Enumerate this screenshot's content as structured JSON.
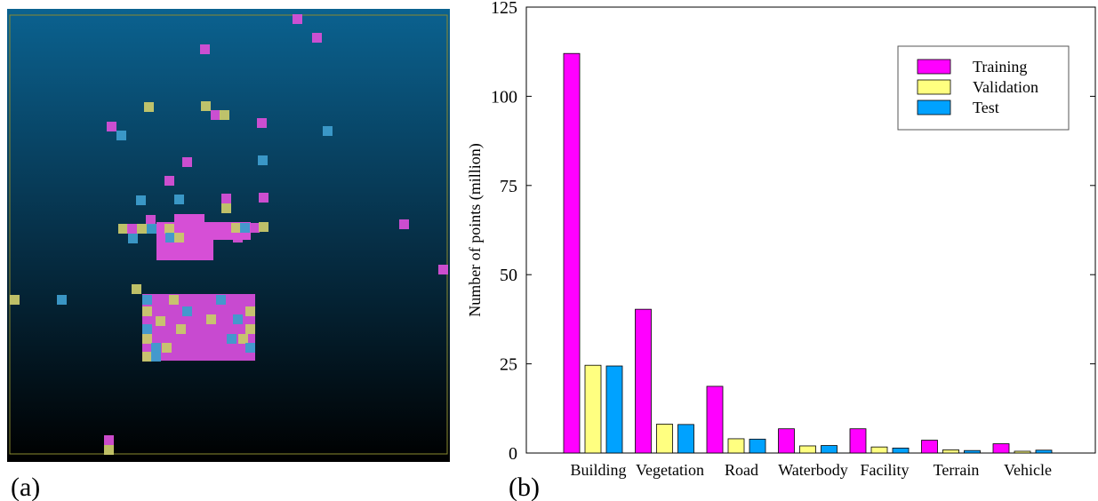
{
  "panel_labels": {
    "a": "(a)",
    "b": "(b)"
  },
  "chart_data": {
    "type": "bar",
    "y_label": "Number of points (million)",
    "categories": [
      "Building",
      "Vegetation",
      "Road",
      "Waterbody",
      "Facility",
      "Terrain",
      "Vehicle"
    ],
    "series": [
      {
        "name": "Training",
        "color": "#ff00ff",
        "values": [
          112,
          40.3,
          18.7,
          6.8,
          6.8,
          3.6,
          2.6
        ]
      },
      {
        "name": "Validation",
        "color": "#ffff80",
        "values": [
          24.6,
          8.1,
          4.0,
          2.0,
          1.7,
          0.9,
          0.5
        ]
      },
      {
        "name": "Test",
        "color": "#00a2ff",
        "values": [
          24.4,
          8.0,
          3.9,
          2.1,
          1.4,
          0.7,
          0.8
        ]
      }
    ],
    "ylim": [
      0,
      125
    ],
    "yticks": [
      0,
      25,
      50,
      75,
      100,
      125
    ],
    "legend": "upper right"
  }
}
